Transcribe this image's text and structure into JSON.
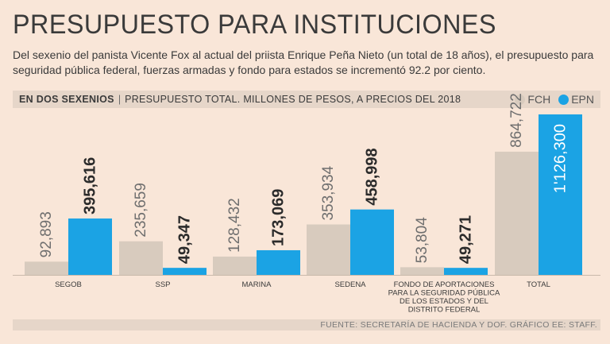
{
  "header": {
    "title": "PRESUPUESTO PARA INSTITUCIONES",
    "subtitle": "Del sexenio del panista Vicente Fox al actual del priista Enrique Peña Nieto (un total de 18 años), el presupuesto para seguridad pública federal, fuerzas armadas y fondo para estados se incrementó 92.2 por ciento."
  },
  "chart_header": {
    "label": "EN DOS SEXENIOS",
    "separator": "|",
    "description": "PRESUPUESTO TOTAL. MILLONES DE PESOS, A PRECIOS DEL 2018"
  },
  "legend": {
    "items": [
      {
        "name": "FCH",
        "color": "#d8cbbe"
      },
      {
        "name": "EPN",
        "color": "#1ba3e4"
      }
    ]
  },
  "chart_data": {
    "type": "bar",
    "title": "EN DOS SEXENIOS",
    "subtitle": "PRESUPUESTO TOTAL. MILLONES DE PESOS, A PRECIOS DEL 2018",
    "categories": [
      "SEGOB",
      "SSP",
      "MARINA",
      "SEDENA",
      "FONDO DE APORTACIONES PARA LA SEGURIDAD PÚBLICA DE LOS ESTADOS Y DEL DISTRITO FEDERAL",
      "TOTAL"
    ],
    "category_label_lines": [
      [
        "SEGOB"
      ],
      [
        "SSP"
      ],
      [
        "MARINA"
      ],
      [
        "SEDENA"
      ],
      [
        "FONDO DE APORTACIONES",
        "PARA LA SEGURIDAD PÚBLICA",
        "DE LOS ESTADOS Y DEL",
        "DISTRITO FEDERAL"
      ],
      [
        "TOTAL"
      ]
    ],
    "series": [
      {
        "name": "FCH",
        "color": "#d8cbbe",
        "values": [
          92893,
          235659,
          128432,
          353934,
          53804,
          864722
        ],
        "labels": [
          "92,893",
          "235,659",
          "128,432",
          "353,934",
          "53,804",
          "864,722"
        ]
      },
      {
        "name": "EPN",
        "color": "#1ba3e4",
        "values": [
          395616,
          49347,
          173069,
          458998,
          49271,
          1126300
        ],
        "labels": [
          "395,616",
          "49,347",
          "173,069",
          "458,998",
          "49,271",
          "1'126,300"
        ]
      }
    ],
    "ylim": [
      0,
      1126300
    ],
    "grid": false,
    "legend_position": "top-right"
  },
  "footer": {
    "source": "FUENTE: SECRETARÍA DE HACIENDA Y DOF.  GRÁFICO EE: STAFF."
  }
}
